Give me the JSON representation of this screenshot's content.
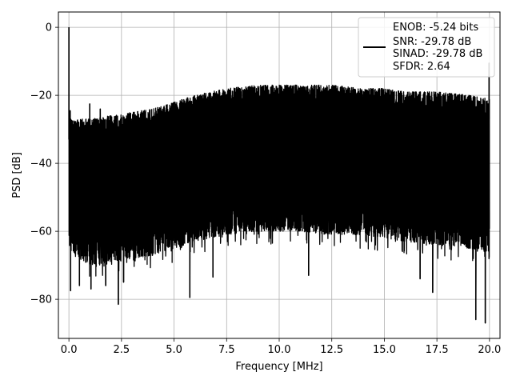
{
  "chart_data": {
    "type": "line",
    "title": "",
    "xlabel": "Frequency [MHz]",
    "ylabel": "PSD [dB]",
    "xlim": [
      -0.5,
      20.5
    ],
    "ylim": [
      -91.5,
      4.5
    ],
    "xticks": [
      0.0,
      2.5,
      5.0,
      7.5,
      10.0,
      12.5,
      15.0,
      17.5,
      20.0
    ],
    "xtick_labels": [
      "0.0",
      "2.5",
      "5.0",
      "7.5",
      "10.0",
      "12.5",
      "15.0",
      "17.5",
      "20.0"
    ],
    "yticks": [
      0,
      -20,
      -40,
      -60,
      -80
    ],
    "ytick_labels": [
      "0",
      "−20",
      "−40",
      "−60",
      "−80"
    ],
    "grid": true,
    "legend_position": "top-right",
    "legend_lines": [
      "ENOB: -5.24 bits",
      "SNR: -29.78 dB",
      "SINAD: -29.78 dB",
      "SFDR: 2.64"
    ],
    "line_color": "#000000",
    "series": [
      {
        "upper_envelope": {
          "x": [
            0.0,
            0.3,
            1.0,
            2.0,
            3.0,
            4.0,
            5.0,
            6.0,
            7.5,
            9.0,
            10.0,
            11.0,
            12.5,
            14.0,
            15.0,
            16.0,
            17.5,
            19.0,
            20.0
          ],
          "y": [
            -27,
            -27,
            -27,
            -26,
            -25,
            -24,
            -22,
            -20,
            -18,
            -17,
            -17,
            -17,
            -17,
            -18,
            -18,
            -19,
            -19,
            -20,
            -21
          ]
        },
        "lower_envelope": {
          "x": [
            0.0,
            0.5,
            1.0,
            2.0,
            3.0,
            4.0,
            5.0,
            6.0,
            7.5,
            9.0,
            10.0,
            11.0,
            12.5,
            14.0,
            15.0,
            16.0,
            17.5,
            19.0,
            20.0
          ],
          "y": [
            -63,
            -66,
            -68,
            -67,
            -66,
            -65,
            -63,
            -61,
            -59,
            -58,
            -58,
            -58,
            -59,
            -59,
            -60,
            -61,
            -62,
            -63,
            -64
          ]
        },
        "peaks": [
          {
            "x": 0.0,
            "y": 0.0
          },
          {
            "x": 0.06,
            "y": -24.5
          },
          {
            "x": 0.99,
            "y": -22.5
          },
          {
            "x": 1.49,
            "y": -24.0
          },
          {
            "x": 19.98,
            "y": -10.5
          }
        ],
        "dips": [
          {
            "x": 0.08,
            "y": -77.5
          },
          {
            "x": 0.5,
            "y": -76.0
          },
          {
            "x": 1.05,
            "y": -77.0
          },
          {
            "x": 1.75,
            "y": -76.0
          },
          {
            "x": 2.35,
            "y": -81.5
          },
          {
            "x": 2.6,
            "y": -75.0
          },
          {
            "x": 5.75,
            "y": -79.5
          },
          {
            "x": 6.85,
            "y": -73.5
          },
          {
            "x": 11.4,
            "y": -73.0
          },
          {
            "x": 16.7,
            "y": -74.0
          },
          {
            "x": 17.3,
            "y": -78.0
          },
          {
            "x": 19.35,
            "y": -86.0
          },
          {
            "x": 19.8,
            "y": -87.0
          }
        ]
      }
    ]
  }
}
